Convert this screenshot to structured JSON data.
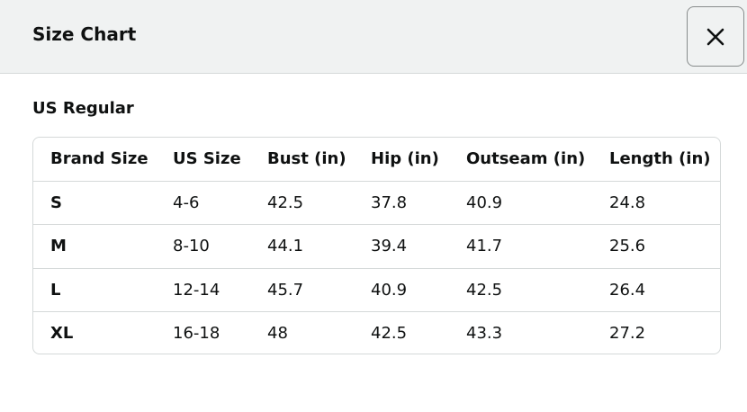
{
  "header": {
    "title": "Size Chart"
  },
  "section": {
    "title": "US Regular"
  },
  "table": {
    "columns": [
      "Brand Size",
      "US Size",
      "Bust (in)",
      "Hip (in)",
      "Outseam (in)",
      "Length (in)"
    ],
    "rows": [
      [
        "S",
        "4-6",
        42.5,
        37.8,
        40.9,
        24.8
      ],
      [
        "M",
        "8-10",
        44.1,
        39.4,
        41.7,
        25.6
      ],
      [
        "L",
        "12-14",
        45.7,
        40.9,
        42.5,
        26.4
      ],
      [
        "XL",
        "16-18",
        48,
        42.5,
        43.3,
        27.2
      ]
    ]
  }
}
